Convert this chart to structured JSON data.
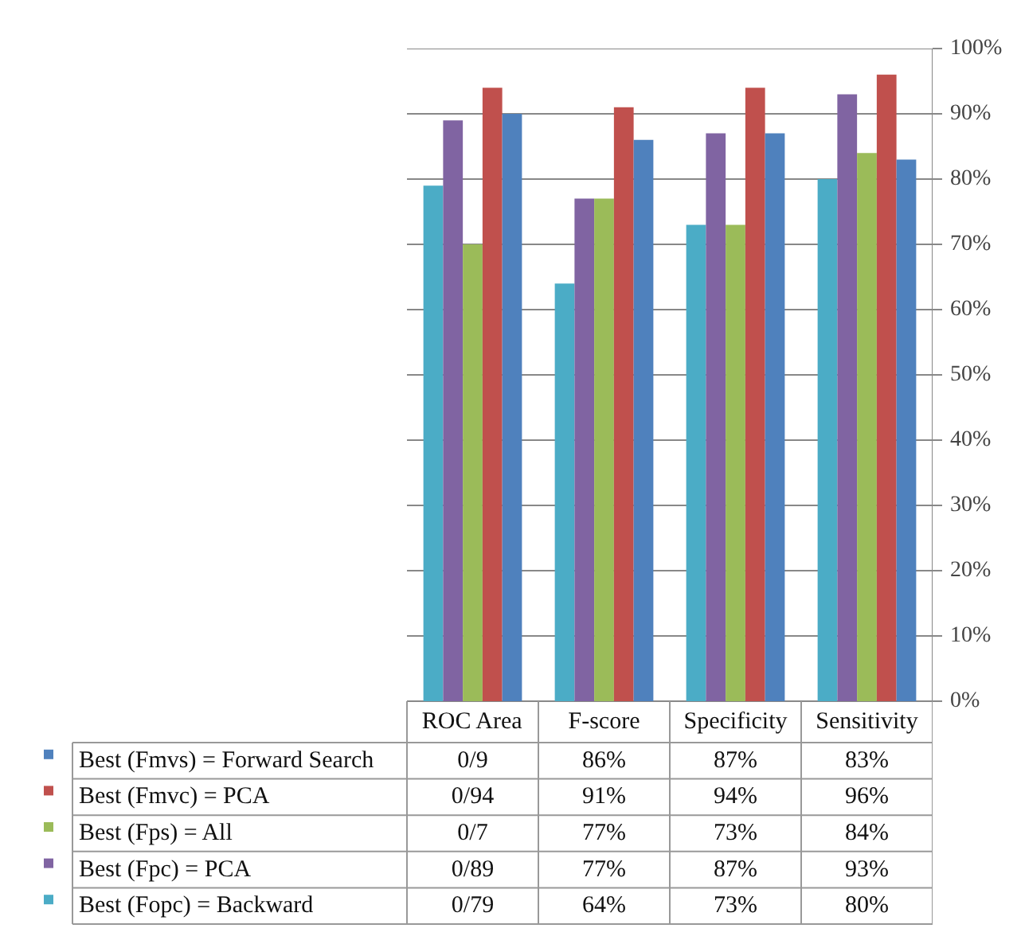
{
  "chart_data": {
    "type": "bar",
    "categories": [
      "ROC Area",
      "F-score",
      "Specificity",
      "Sensitivity"
    ],
    "series": [
      {
        "name": "Best (Fopc) = Backward",
        "color": "#4bacc6",
        "values": [
          79,
          64,
          73,
          80
        ],
        "value_labels": [
          "0/79",
          "64%",
          "73%",
          "80%"
        ]
      },
      {
        "name": "Best (Fpc) = PCA",
        "color": "#8064a2",
        "values": [
          89,
          77,
          87,
          93
        ],
        "value_labels": [
          "0/89",
          "77%",
          "87%",
          "93%"
        ]
      },
      {
        "name": "Best (Fps) = All",
        "color": "#9bbb59",
        "values": [
          70,
          77,
          73,
          84
        ],
        "value_labels": [
          "0/7",
          "77%",
          "73%",
          "84%"
        ]
      },
      {
        "name": "Best (Fmvc) = PCA",
        "color": "#c0504d",
        "values": [
          94,
          91,
          94,
          96
        ],
        "value_labels": [
          "0/94",
          "91%",
          "94%",
          "96%"
        ]
      },
      {
        "name": "Best (Fmvs) = Forward Search",
        "color": "#4f81bd",
        "values": [
          90,
          86,
          87,
          83
        ],
        "value_labels": [
          "0/9",
          "86%",
          "87%",
          "83%"
        ]
      }
    ],
    "ylim": [
      0,
      100
    ],
    "yticks": [
      {
        "value": 0,
        "label": "0%"
      },
      {
        "value": 10,
        "label": "10%"
      },
      {
        "value": 20,
        "label": "20%"
      },
      {
        "value": 30,
        "label": "30%"
      },
      {
        "value": 40,
        "label": "40%"
      },
      {
        "value": 50,
        "label": "50%"
      },
      {
        "value": 60,
        "label": "60%"
      },
      {
        "value": 70,
        "label": "70%"
      },
      {
        "value": 80,
        "label": "80%"
      },
      {
        "value": 90,
        "label": "90%"
      },
      {
        "value": 100,
        "label": "100%"
      }
    ],
    "grid": "y",
    "legend": "bottom left"
  }
}
